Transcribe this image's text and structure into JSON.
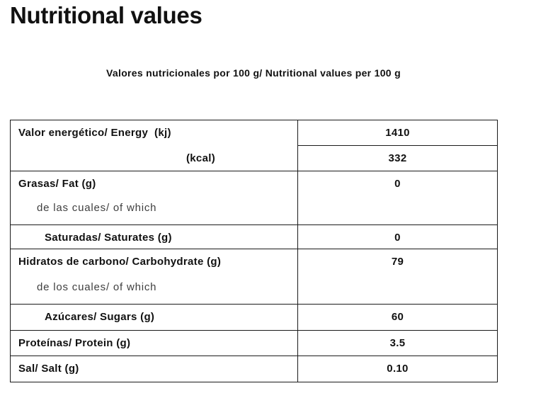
{
  "colors": {
    "background": "#ffffff",
    "text": "#111111",
    "muted_text": "#3f3f3f",
    "table_border": "#1a1a1a"
  },
  "header": {
    "title": "Nutritional values",
    "caption": "Valores nutricionales por 100 g/ Nutritional values per 100 g"
  },
  "nutrition_table": {
    "energy": {
      "label": "Valor energético/ Energy  (kj)",
      "kcal_label": "(kcal)",
      "kj_value": "1410",
      "kcal_value": "332"
    },
    "fat": {
      "label": "Grasas/ Fat (g)",
      "sublabel": "de las cuales/ of which",
      "value": "0"
    },
    "saturates": {
      "label": "Saturadas/ Saturates (g)",
      "value": "0"
    },
    "carbohydrate": {
      "label": "Hidratos de carbono/ Carbohydrate (g)",
      "sublabel": "de los cuales/ of which",
      "value": "79"
    },
    "sugars": {
      "label": "Azúcares/ Sugars (g)",
      "value": "60"
    },
    "protein": {
      "label": "Proteínas/ Protein (g)",
      "value": "3.5"
    },
    "salt": {
      "label": "Sal/ Salt (g)",
      "value": "0.10"
    }
  }
}
